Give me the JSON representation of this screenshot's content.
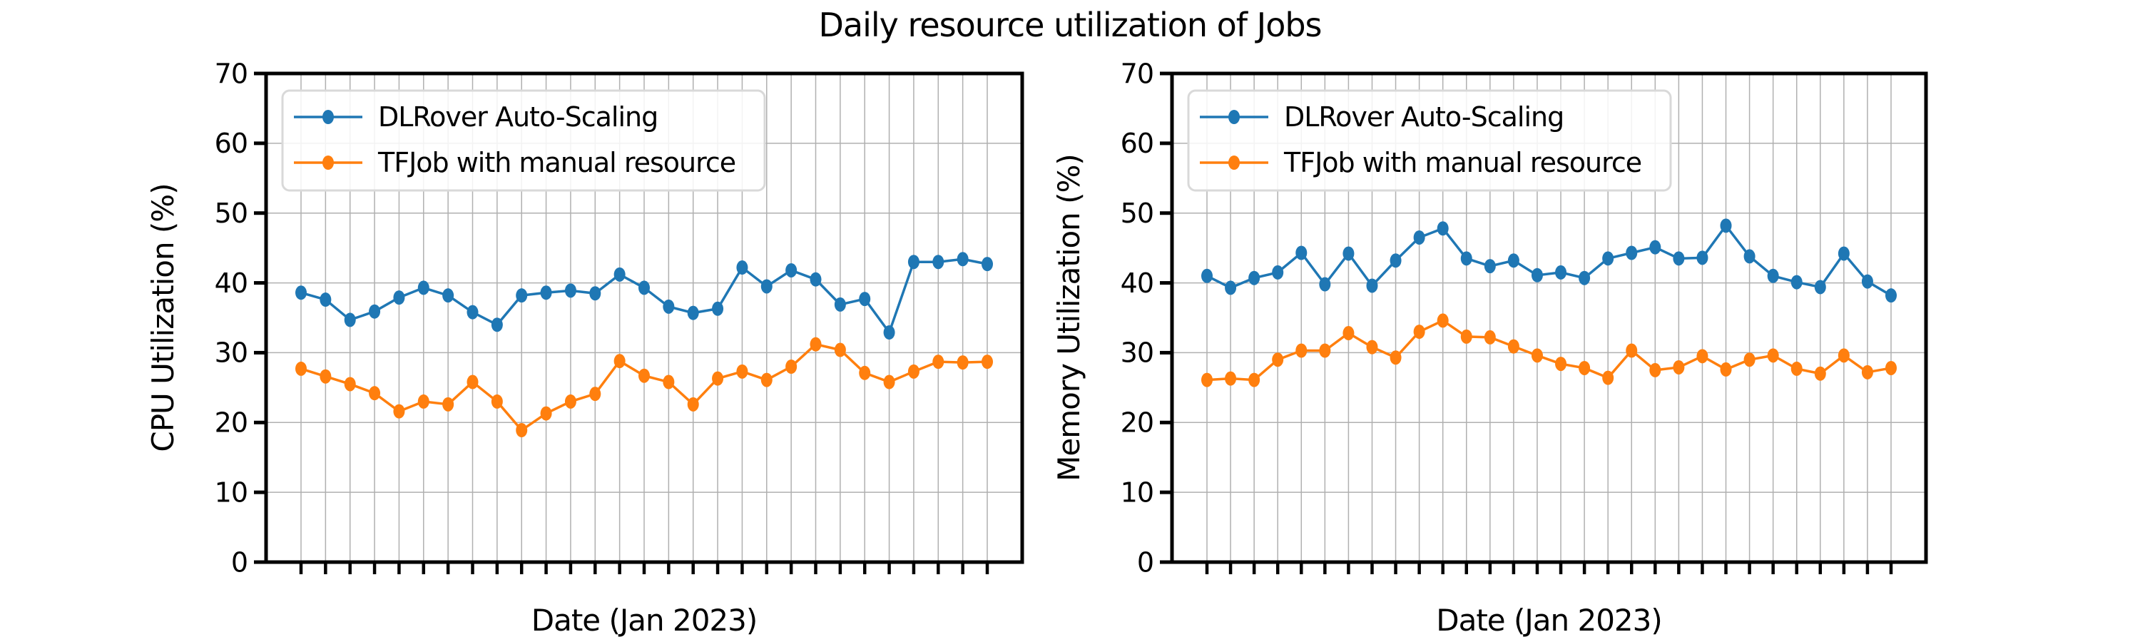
{
  "title": "Daily resource utilization of Jobs",
  "colors": {
    "dlrover": "#1f77b4",
    "tfjob": "#ff7f0e",
    "grid": "#b0b0b0",
    "spine": "#000000",
    "legend_border": "#d9d9d9",
    "legend_bg": "#ffffff"
  },
  "legend": {
    "items": [
      {
        "label": "DLRover Auto-Scaling",
        "color_key": "dlrover"
      },
      {
        "label": "TFJob with manual resource",
        "color_key": "tfjob"
      }
    ]
  },
  "chart_data": [
    {
      "id": "cpu",
      "type": "line",
      "xlabel": "Date (Jan 2023)",
      "ylabel": "CPU Utilization (%)",
      "ylim": [
        0,
        70
      ],
      "yticks": [
        0,
        10,
        20,
        30,
        40,
        50,
        60,
        70
      ],
      "grid": true,
      "legend_position": "upper-left",
      "x": [
        1,
        2,
        3,
        4,
        5,
        6,
        7,
        8,
        9,
        10,
        11,
        12,
        13,
        14,
        15,
        16,
        17,
        18,
        19,
        20,
        21,
        22,
        23,
        24,
        25,
        26,
        27,
        28,
        29
      ],
      "series": [
        {
          "name": "DLRover Auto-Scaling",
          "color": "#1f77b4",
          "values": [
            38.6,
            37.6,
            34.7,
            35.9,
            37.9,
            39.3,
            38.2,
            35.8,
            34.0,
            38.2,
            38.6,
            38.9,
            38.5,
            41.2,
            39.3,
            36.6,
            35.7,
            36.3,
            42.2,
            39.5,
            41.8,
            40.5,
            36.9,
            37.7,
            32.9,
            43.0,
            43.0,
            43.4,
            42.7
          ]
        },
        {
          "name": "TFJob with manual resource",
          "color": "#ff7f0e",
          "values": [
            27.7,
            26.6,
            25.5,
            24.2,
            21.6,
            23.0,
            22.6,
            25.8,
            23.0,
            18.9,
            21.3,
            23.0,
            24.1,
            28.8,
            26.7,
            25.8,
            22.6,
            26.3,
            27.3,
            26.1,
            28.0,
            31.2,
            30.4,
            27.1,
            25.8,
            27.3,
            28.7,
            28.6,
            28.7
          ]
        }
      ]
    },
    {
      "id": "memory",
      "type": "line",
      "xlabel": "Date (Jan 2023)",
      "ylabel": "Memory Utilization (%)",
      "ylim": [
        0,
        70
      ],
      "yticks": [
        0,
        10,
        20,
        30,
        40,
        50,
        60,
        70
      ],
      "grid": true,
      "legend_position": "upper-left",
      "x": [
        1,
        2,
        3,
        4,
        5,
        6,
        7,
        8,
        9,
        10,
        11,
        12,
        13,
        14,
        15,
        16,
        17,
        18,
        19,
        20,
        21,
        22,
        23,
        24,
        25,
        26,
        27,
        28,
        29,
        30
      ],
      "series": [
        {
          "name": "DLRover Auto-Scaling",
          "color": "#1f77b4",
          "values": [
            41.0,
            39.3,
            40.7,
            41.5,
            44.3,
            39.8,
            44.2,
            39.6,
            43.2,
            46.5,
            47.8,
            43.5,
            42.4,
            43.2,
            41.1,
            41.5,
            40.7,
            43.5,
            44.3,
            45.1,
            43.5,
            43.6,
            48.2,
            43.8,
            41.0,
            40.1,
            39.4,
            44.2,
            40.2,
            38.2
          ]
        },
        {
          "name": "TFJob with manual resource",
          "color": "#ff7f0e",
          "values": [
            26.1,
            26.3,
            26.1,
            29.0,
            30.3,
            30.3,
            32.8,
            30.8,
            29.3,
            33.0,
            34.6,
            32.3,
            32.2,
            30.9,
            29.6,
            28.4,
            27.8,
            26.4,
            30.3,
            27.5,
            27.9,
            29.5,
            27.6,
            29.0,
            29.6,
            27.7,
            27.0,
            29.6,
            27.2,
            27.8
          ]
        }
      ]
    }
  ]
}
